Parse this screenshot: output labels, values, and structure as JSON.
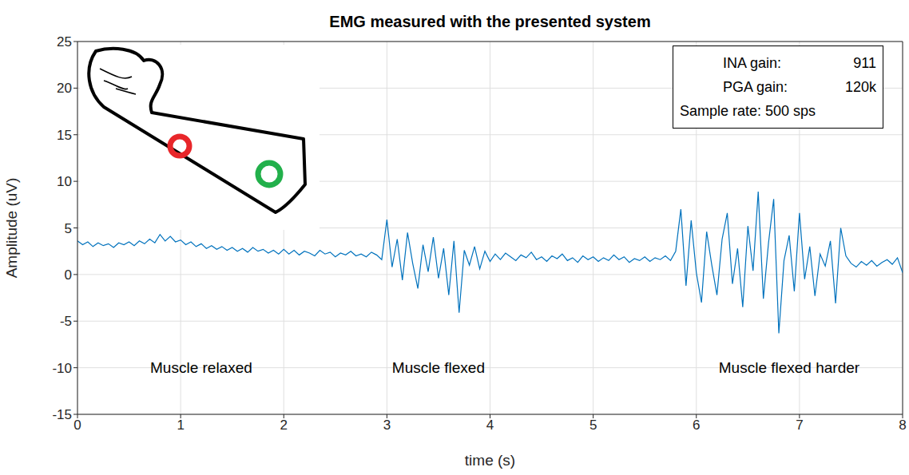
{
  "chart_data": {
    "type": "line",
    "title": "EMG measured with the presented system",
    "x_label": "time (s)",
    "y_label": "Amplitude (uV)",
    "xlim": [
      0,
      8
    ],
    "xticks": [
      0,
      1,
      2,
      3,
      4,
      5,
      6,
      7,
      8
    ],
    "ylim": [
      -15,
      25
    ],
    "yticks": [
      -15,
      -10,
      -5,
      0,
      5,
      10,
      15,
      20,
      25
    ],
    "grid": true,
    "color": "#0072bd",
    "x": [
      0,
      0.05,
      0.1,
      0.15,
      0.2,
      0.25,
      0.3,
      0.35,
      0.4,
      0.45,
      0.5,
      0.55,
      0.6,
      0.65,
      0.7,
      0.75,
      0.8,
      0.85,
      0.9,
      0.95,
      1,
      1.05,
      1.1,
      1.15,
      1.2,
      1.25,
      1.3,
      1.35,
      1.4,
      1.45,
      1.5,
      1.55,
      1.6,
      1.65,
      1.7,
      1.75,
      1.8,
      1.85,
      1.9,
      1.95,
      2,
      2.05,
      2.1,
      2.15,
      2.2,
      2.25,
      2.3,
      2.35,
      2.4,
      2.45,
      2.5,
      2.55,
      2.6,
      2.65,
      2.7,
      2.75,
      2.8,
      2.85,
      2.9,
      2.95,
      3,
      3.05,
      3.1,
      3.15,
      3.2,
      3.25,
      3.3,
      3.35,
      3.4,
      3.45,
      3.5,
      3.55,
      3.6,
      3.65,
      3.7,
      3.75,
      3.8,
      3.85,
      3.9,
      3.95,
      4,
      4.05,
      4.1,
      4.15,
      4.2,
      4.25,
      4.3,
      4.35,
      4.4,
      4.45,
      4.5,
      4.55,
      4.6,
      4.65,
      4.7,
      4.75,
      4.8,
      4.85,
      4.9,
      4.95,
      5,
      5.05,
      5.1,
      5.15,
      5.2,
      5.25,
      5.3,
      5.35,
      5.4,
      5.45,
      5.5,
      5.55,
      5.6,
      5.65,
      5.7,
      5.75,
      5.8,
      5.85,
      5.9,
      5.95,
      6,
      6.05,
      6.1,
      6.15,
      6.2,
      6.25,
      6.3,
      6.35,
      6.4,
      6.45,
      6.5,
      6.55,
      6.6,
      6.65,
      6.7,
      6.75,
      6.8,
      6.85,
      6.9,
      6.95,
      7,
      7.05,
      7.1,
      7.15,
      7.2,
      7.25,
      7.3,
      7.35,
      7.4,
      7.45,
      7.5,
      7.55,
      7.6,
      7.65,
      7.7,
      7.75,
      7.8,
      7.85,
      7.9,
      7.95,
      8
    ],
    "values": [
      3.6,
      3.2,
      3.5,
      3.0,
      3.4,
      3.1,
      3.3,
      2.9,
      3.4,
      3.2,
      3.5,
      3.1,
      3.6,
      3.3,
      3.8,
      3.4,
      4.3,
      3.6,
      4.1,
      3.5,
      3.7,
      3.2,
      3.5,
      3.0,
      3.3,
      2.8,
      3.1,
      2.7,
      3.0,
      2.6,
      2.9,
      2.5,
      2.8,
      2.4,
      2.9,
      2.5,
      2.7,
      2.3,
      2.6,
      2.2,
      2.7,
      2.2,
      2.6,
      2.1,
      2.5,
      2.3,
      2.0,
      2.6,
      2.2,
      2.4,
      1.9,
      2.3,
      2.1,
      2.5,
      2.0,
      2.2,
      1.9,
      2.4,
      2.1,
      1.6,
      5.9,
      0.8,
      3.8,
      -0.6,
      4.5,
      1.2,
      -1.5,
      3.2,
      0.3,
      4.0,
      -0.4,
      2.8,
      -2.2,
      3.6,
      -4.1,
      2.6,
      1.0,
      3.0,
      0.6,
      2.5,
      1.4,
      2.2,
      1.6,
      2.3,
      1.9,
      1.5,
      2.1,
      1.8,
      2.4,
      1.6,
      1.9,
      1.4,
      2.0,
      1.7,
      2.2,
      1.5,
      1.8,
      1.3,
      2.0,
      1.6,
      1.9,
      1.4,
      1.8,
      1.5,
      2.1,
      1.6,
      1.9,
      1.3,
      1.7,
      1.5,
      1.9,
      1.4,
      1.8,
      1.6,
      2.0,
      1.5,
      2.5,
      7.0,
      -1.2,
      5.8,
      0.2,
      -3.0,
      4.6,
      1.0,
      -2.2,
      3.8,
      6.6,
      -1.0,
      2.8,
      -3.5,
      5.2,
      0.4,
      8.9,
      -2.6,
      3.4,
      8.1,
      -6.3,
      1.5,
      4.2,
      -1.8,
      6.6,
      -0.5,
      3.0,
      -2.3,
      2.2,
      0.9,
      3.6,
      -3.1,
      5.0,
      2.0,
      1.2,
      0.8,
      1.4,
      1.0,
      1.5,
      0.9,
      1.3,
      1.6,
      1.1,
      1.8,
      0.2
    ],
    "annotations": [
      {
        "text": "Muscle relaxed",
        "x": 1.2,
        "y": -10
      },
      {
        "text": "Muscle flexed",
        "x": 3.5,
        "y": -10
      },
      {
        "text": "Muscle flexed harder",
        "x": 6.9,
        "y": -10
      }
    ],
    "info_box": [
      [
        "INA gain:",
        "911"
      ],
      [
        "PGA gain:",
        "120k"
      ],
      [
        "Sample rate: 500 sps"
      ]
    ]
  }
}
